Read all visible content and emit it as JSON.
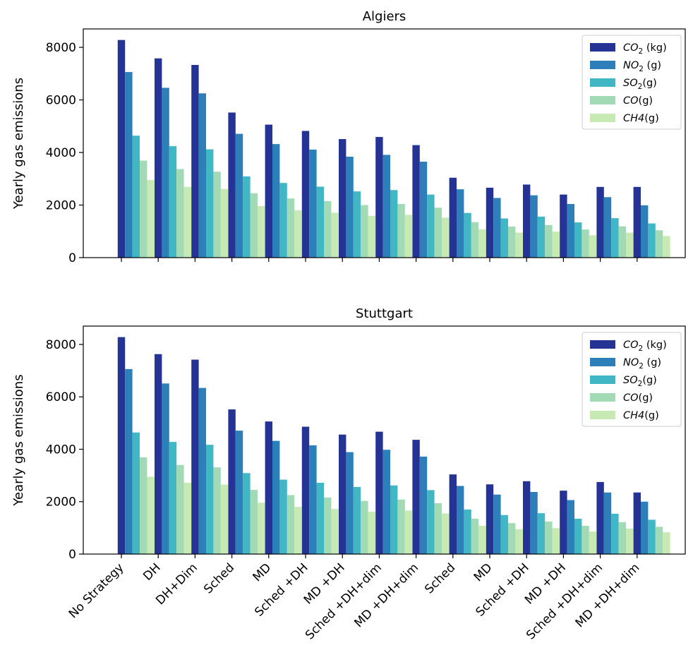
{
  "chart_data": [
    {
      "type": "bar",
      "title": "Algiers",
      "xlabel": "",
      "ylabel": "Yearly gas emissions",
      "ylim": [
        0,
        8700
      ],
      "yticks": [
        0,
        2000,
        4000,
        6000,
        8000
      ],
      "legend_position": "top-right",
      "grid": false,
      "categories": [
        "No Strategy",
        "DH",
        "DH+Dim",
        "Sched",
        "MD",
        "Sched +DH",
        "MD +DH",
        "Sched +DH+dim",
        "MD +DH+dim",
        "Sched",
        "MD",
        "Sched +DH",
        "MD +DH",
        "Sched +DH+dim",
        "MD +DH+dim"
      ],
      "series": [
        {
          "name": "CO2 (kg)",
          "legend": {
            "sym": "CO",
            "sub": "2",
            "unit": " (kg)"
          },
          "color": "#253494",
          "values": [
            8280,
            7580,
            7330,
            5520,
            5060,
            4820,
            4510,
            4590,
            4280,
            3040,
            2660,
            2780,
            2400,
            2690,
            2690
          ]
        },
        {
          "name": "NO2 (g)",
          "legend": {
            "sym": "NO",
            "sub": "2",
            "unit": " (g)"
          },
          "color": "#2c7fb8",
          "values": [
            7060,
            6460,
            6250,
            4710,
            4320,
            4110,
            3840,
            3910,
            3650,
            2600,
            2270,
            2370,
            2040,
            2300,
            1990
          ]
        },
        {
          "name": "SO2(g)",
          "legend": {
            "sym": "SO",
            "sub": "2",
            "unit": "(g)"
          },
          "color": "#41b6c4",
          "values": [
            4640,
            4240,
            4120,
            3090,
            2840,
            2700,
            2520,
            2570,
            2400,
            1700,
            1490,
            1560,
            1340,
            1500,
            1300
          ]
        },
        {
          "name": "CO(g)",
          "legend": {
            "sym": "CO",
            "sub": "",
            "unit": "(g)"
          },
          "color": "#a1dab4",
          "values": [
            3690,
            3370,
            3270,
            2450,
            2250,
            2150,
            2000,
            2040,
            1900,
            1350,
            1180,
            1240,
            1070,
            1190,
            1040
          ]
        },
        {
          "name": "CH4(g)",
          "legend": {
            "sym": "CH4",
            "sub": "",
            "unit": "(g)"
          },
          "color": "#c7e9b4",
          "values": [
            2950,
            2690,
            2610,
            1960,
            1800,
            1710,
            1590,
            1630,
            1520,
            1080,
            950,
            990,
            850,
            950,
            820
          ]
        }
      ]
    },
    {
      "type": "bar",
      "title": "Stuttgart",
      "xlabel": "",
      "ylabel": "Yearly gas emissions",
      "ylim": [
        0,
        8700
      ],
      "yticks": [
        0,
        2000,
        4000,
        6000,
        8000
      ],
      "legend_position": "top-right",
      "grid": false,
      "categories": [
        "No Strategy",
        "DH",
        "DH+Dim",
        "Sched",
        "MD",
        "Sched +DH",
        "MD +DH",
        "Sched +DH+dim",
        "MD +DH+dim",
        "Sched",
        "MD",
        "Sched +DH",
        "MD +DH",
        "Sched +DH+dim",
        "MD +DH+dim"
      ],
      "series": [
        {
          "name": "CO2 (kg)",
          "legend": {
            "sym": "CO",
            "sub": "2",
            "unit": " (kg)"
          },
          "color": "#253494",
          "values": [
            8280,
            7630,
            7420,
            5520,
            5060,
            4860,
            4560,
            4670,
            4360,
            3040,
            2660,
            2780,
            2420,
            2750,
            2350
          ]
        },
        {
          "name": "NO2 (g)",
          "legend": {
            "sym": "NO",
            "sub": "2",
            "unit": " (g)"
          },
          "color": "#2c7fb8",
          "values": [
            7060,
            6510,
            6340,
            4710,
            4320,
            4150,
            3890,
            3980,
            3720,
            2600,
            2270,
            2370,
            2060,
            2350,
            2000
          ]
        },
        {
          "name": "SO2(g)",
          "legend": {
            "sym": "SO",
            "sub": "2",
            "unit": "(g)"
          },
          "color": "#41b6c4",
          "values": [
            4640,
            4280,
            4170,
            3090,
            2840,
            2720,
            2560,
            2620,
            2440,
            1700,
            1490,
            1560,
            1350,
            1540,
            1310
          ]
        },
        {
          "name": "CO(g)",
          "legend": {
            "sym": "CO",
            "sub": "",
            "unit": "(g)"
          },
          "color": "#a1dab4",
          "values": [
            3690,
            3400,
            3310,
            2450,
            2250,
            2160,
            2030,
            2080,
            1940,
            1350,
            1180,
            1240,
            1080,
            1220,
            1040
          ]
        },
        {
          "name": "CH4(g)",
          "legend": {
            "sym": "CH4",
            "sub": "",
            "unit": "(g)"
          },
          "color": "#c7e9b4",
          "values": [
            2950,
            2720,
            2650,
            1960,
            1800,
            1720,
            1620,
            1660,
            1550,
            1080,
            950,
            990,
            860,
            970,
            830
          ]
        }
      ]
    }
  ]
}
